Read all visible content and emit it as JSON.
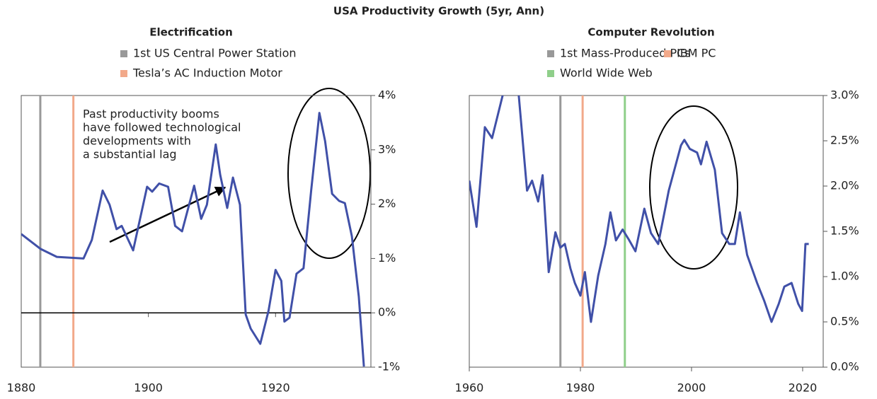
{
  "title": "USA Productivity Growth (5yr, Ann)",
  "chart_data": [
    {
      "type": "line",
      "title": "Electrification",
      "xlim": [
        1880,
        1935
      ],
      "xticks": [
        1880,
        1900,
        1920
      ],
      "ylim": [
        -1,
        4
      ],
      "yticks": [
        {
          "value": -1,
          "label": "-1%"
        },
        {
          "value": 0,
          "label": "0%"
        },
        {
          "value": 1,
          "label": "1%"
        },
        {
          "value": 2,
          "label": "2%"
        },
        {
          "value": 3,
          "label": "3%"
        },
        {
          "value": 4,
          "label": "4%"
        }
      ],
      "zero_line": true,
      "vlines": [
        {
          "name": "1st US Central Power Station",
          "color": "#999999",
          "x": 1883
        },
        {
          "name": "Tesla’s AC Induction Motor",
          "color": "#f2a98a",
          "x": 1888.2
        }
      ],
      "annotation": [
        "Past productivity booms",
        "have followed technological",
        "developments with",
        "a substantial lag"
      ],
      "x": [
        1880,
        1883,
        1885.6,
        1889.8,
        1891.1,
        1892.8,
        1893.9,
        1895,
        1895.8,
        1897.6,
        1899.8,
        1900.6,
        1901.7,
        1903.1,
        1904.2,
        1905.3,
        1907.2,
        1908.3,
        1909.2,
        1910.6,
        1911.3,
        1912.4,
        1913.3,
        1914.4,
        1915.3,
        1916.1,
        1917.6,
        1918.9,
        1920,
        1920.9,
        1921.4,
        1922.2,
        1923.3,
        1924.4,
        1925.6,
        1926.9,
        1927.8,
        1928.9,
        1930,
        1930.9,
        1932,
        1933.1,
        1933.9
      ],
      "series": [
        {
          "name": "USA Productivity Growth",
          "color": "#4050a8",
          "values": [
            1.45,
            1.18,
            1.03,
            1.0,
            1.34,
            2.25,
            1.99,
            1.54,
            1.6,
            1.15,
            2.32,
            2.23,
            2.38,
            2.32,
            1.6,
            1.5,
            2.34,
            1.73,
            1.99,
            3.1,
            2.54,
            1.93,
            2.49,
            1.99,
            -0.03,
            -0.29,
            -0.57,
            0.04,
            0.79,
            0.59,
            -0.16,
            -0.09,
            0.72,
            0.82,
            2.25,
            3.68,
            3.16,
            2.19,
            2.06,
            2.02,
            1.41,
            0.3,
            -0.99
          ]
        }
      ]
    },
    {
      "type": "line",
      "title": "Computer Revolution",
      "xlim": [
        1960,
        2023.7
      ],
      "xticks": [
        1960,
        1980,
        2000,
        2020
      ],
      "ylim": [
        0,
        3
      ],
      "yticks": [
        {
          "value": 0,
          "label": "0.0%"
        },
        {
          "value": 0.5,
          "label": "0.5%"
        },
        {
          "value": 1,
          "label": "1.0%"
        },
        {
          "value": 1.5,
          "label": "1.5%"
        },
        {
          "value": 2,
          "label": "2.0%"
        },
        {
          "value": 2.5,
          "label": "2.5%"
        },
        {
          "value": 3,
          "label": "3.0%"
        }
      ],
      "zero_line": false,
      "vlines": [
        {
          "name": "1st Mass-Produced PCs",
          "color": "#999999",
          "x": 1976.4
        },
        {
          "name": "IBM PC",
          "color": "#f2a98a",
          "x": 1980.4
        },
        {
          "name": "World Wide Web",
          "color": "#8fcf8a",
          "x": 1988
        }
      ],
      "x": [
        1960,
        1961.3,
        1962.8,
        1964.1,
        1966,
        1967.3,
        1968.9,
        1970.4,
        1971.3,
        1972.4,
        1973.2,
        1974.3,
        1975.5,
        1976.4,
        1977.2,
        1978.2,
        1979,
        1980,
        1980.8,
        1981.9,
        1983.2,
        1984.5,
        1985.4,
        1986.4,
        1987.6,
        1988.7,
        1989.9,
        1991.5,
        1992.7,
        1994,
        1995.9,
        1998.1,
        1998.7,
        1999.7,
        2001,
        2001.7,
        2002.7,
        2004.2,
        2005.5,
        2006.8,
        2007.8,
        2008.7,
        2010,
        2011.8,
        2013.1,
        2014.4,
        2015.7,
        2016.7,
        2018,
        2019.2,
        2019.9,
        2020.5,
        2021.1
      ],
      "series": [
        {
          "name": "USA Productivity Growth",
          "color": "#4050a8",
          "values": [
            2.06,
            1.55,
            2.65,
            2.53,
            3.0,
            3.2,
            3.0,
            1.95,
            2.06,
            1.83,
            2.12,
            1.05,
            1.49,
            1.32,
            1.36,
            1.09,
            0.93,
            0.79,
            1.05,
            0.5,
            1.01,
            1.36,
            1.71,
            1.4,
            1.52,
            1.41,
            1.28,
            1.75,
            1.48,
            1.36,
            1.95,
            2.45,
            2.51,
            2.41,
            2.37,
            2.24,
            2.49,
            2.18,
            1.48,
            1.36,
            1.36,
            1.71,
            1.24,
            0.93,
            0.73,
            0.5,
            0.7,
            0.89,
            0.93,
            0.7,
            0.62,
            1.36,
            1.36
          ]
        }
      ]
    }
  ]
}
